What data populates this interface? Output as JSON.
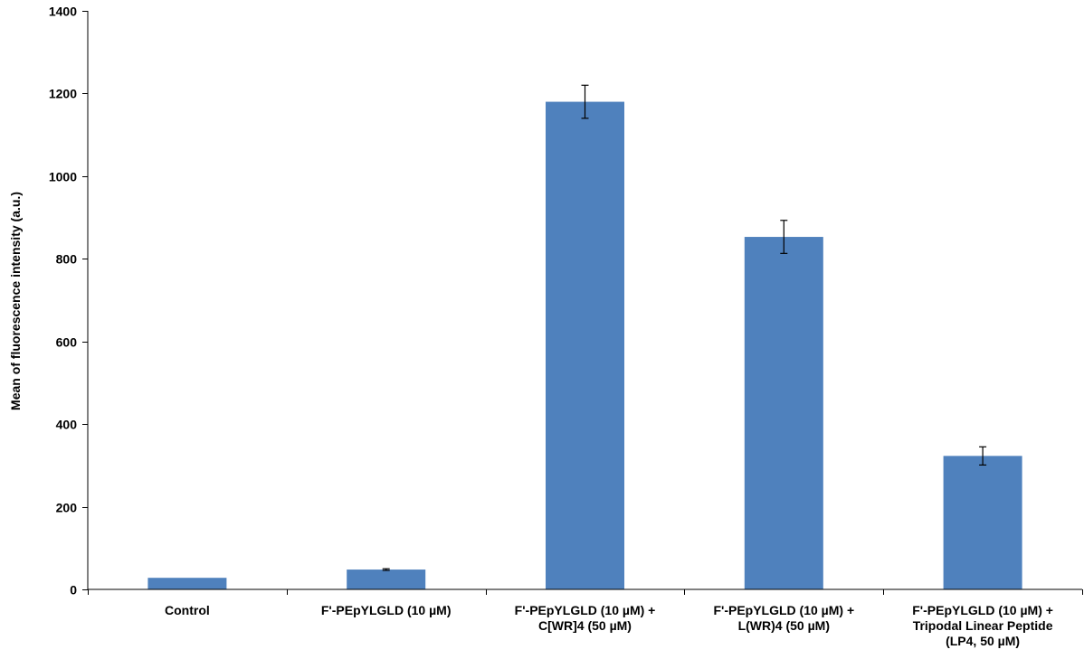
{
  "chart_data": {
    "type": "bar",
    "title": "",
    "xlabel": "",
    "ylabel": "Mean of fluorescence intensity (a.u.)",
    "ylim": [
      0,
      1400
    ],
    "yticks": [
      0,
      200,
      400,
      600,
      800,
      1000,
      1200,
      1400
    ],
    "grid": false,
    "legend": "none",
    "bar_color": "#4F81BD",
    "categories": [
      [
        "Control"
      ],
      [
        "F'-PEpYLGLD (10 µM)"
      ],
      [
        "F'-PEpYLGLD (10 µM) +",
        "C[WR]4 (50 µM)"
      ],
      [
        "F'-PEpYLGLD (10 µM) +",
        "L(WR)4 (50 µM)"
      ],
      [
        "F'-PEpYLGLD (10 µM) +",
        "Tripodal Linear Peptide",
        "(LP4, 50 µM)"
      ]
    ],
    "values": [
      28,
      48,
      1180,
      853,
      323
    ],
    "errors": [
      0,
      2,
      40,
      40,
      22
    ]
  }
}
